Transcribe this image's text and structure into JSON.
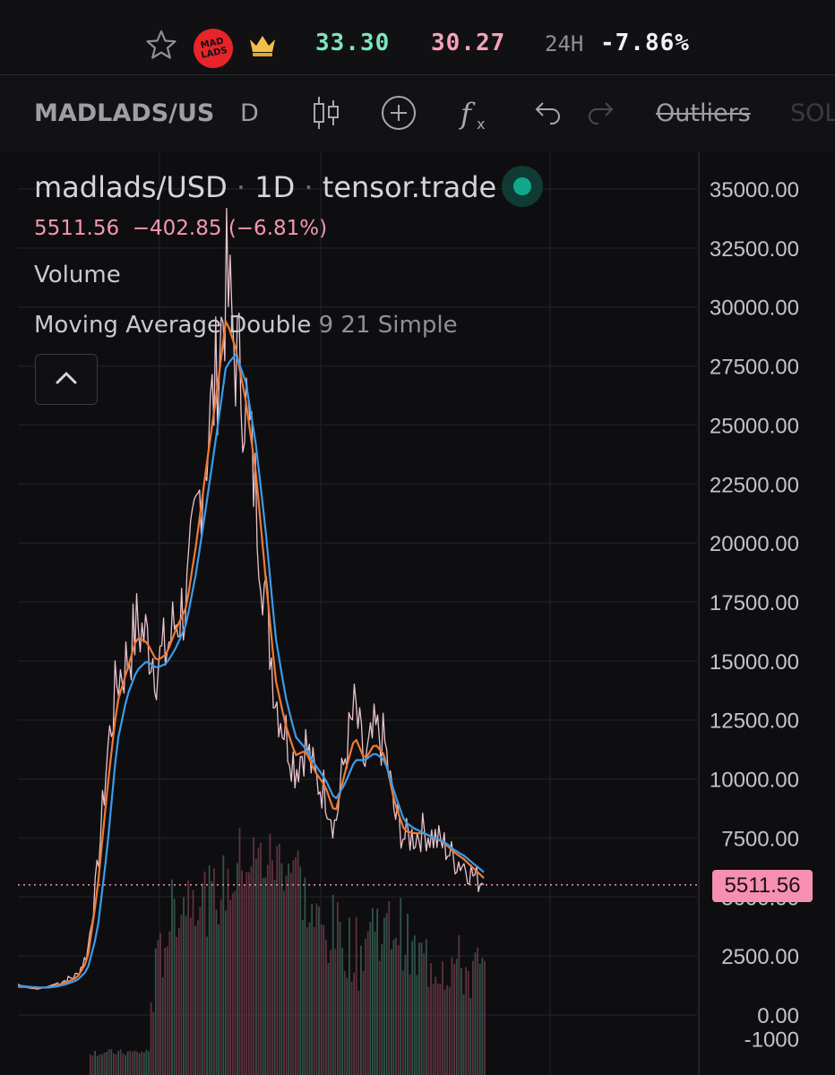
{
  "header": {
    "high_price": "33.30",
    "low_price": "30.27",
    "change_period": "24H",
    "change_pct": "-7.86%",
    "logo_text": "MAD LADS",
    "colors": {
      "high": "#7ce5c0",
      "low": "#f7a1ba",
      "logo": "#e8242b"
    }
  },
  "toolbar": {
    "symbol": "MADLADS/US",
    "interval": "D",
    "outliers": "Outliers",
    "sol": "SOL",
    "icons": [
      "candles-icon",
      "add-icon",
      "indicators-icon",
      "undo-icon",
      "redo-icon"
    ]
  },
  "legend": {
    "pair": "madlads/USD",
    "timeframe": "1D",
    "source": "tensor.trade",
    "separator": "·",
    "last": "5511.56",
    "change": "−402.85",
    "change_pct": "(−6.81%)",
    "volume_label": "Volume",
    "ma_label": "Moving Average Double",
    "ma_params": "9 21 Simple"
  },
  "price_tag": "5511.56",
  "chart_data": {
    "type": "line",
    "title": "madlads/USD · 1D · tensor.trade",
    "ylim": [
      -1000,
      35500
    ],
    "yticks": [
      "35000.00",
      "32500.00",
      "30000.00",
      "27500.00",
      "25000.00",
      "22500.00",
      "20000.00",
      "17500.00",
      "15000.00",
      "12500.00",
      "10000.00",
      "7500.00",
      "5000.00",
      "2500.00",
      "0.00",
      "-1000"
    ],
    "current_price": 5511.56,
    "grid": true,
    "series": [
      {
        "name": "price",
        "color": "#e8c3ce",
        "values": [
          1300,
          1150,
          1100,
          1200,
          1350,
          1500,
          1700,
          2600,
          6000,
          11000,
          14200,
          15000,
          16500,
          16000,
          14800,
          15500,
          16800,
          17500,
          21000,
          24000,
          27000,
          31000,
          28000,
          26000,
          22000,
          17500,
          13500,
          12000,
          10500,
          11500,
          10000,
          9500,
          8000,
          11000,
          13000,
          10500,
          12000,
          11500,
          8500,
          7500,
          7600,
          7800,
          7500,
          7200,
          6600,
          6400,
          5900,
          5511.56
        ]
      },
      {
        "name": "MA 9",
        "color": "#f07a35",
        "values": [
          1200,
          1180,
          1150,
          1170,
          1260,
          1400,
          1600,
          2300,
          5200,
          9500,
          13200,
          14600,
          16000,
          15800,
          15000,
          15300,
          16400,
          17300,
          20000,
          23200,
          26200,
          29500,
          28200,
          26000,
          23000,
          18500,
          14200,
          12300,
          11000,
          11200,
          10300,
          9700,
          8500,
          10300,
          11800,
          10800,
          11500,
          11000,
          9000,
          7800,
          7700,
          7700,
          7500,
          7300,
          6900,
          6600,
          6200,
          5800
        ]
      },
      {
        "name": "MA 21",
        "color": "#3c9be8",
        "values": [
          1250,
          1200,
          1170,
          1160,
          1210,
          1320,
          1480,
          1900,
          3500,
          7000,
          11500,
          13500,
          14600,
          15000,
          14700,
          14900,
          15600,
          16600,
          18800,
          21600,
          24500,
          27500,
          28000,
          26800,
          24200,
          20500,
          16000,
          13500,
          11800,
          11300,
          10600,
          10000,
          9100,
          9800,
          10800,
          10800,
          11100,
          10800,
          9400,
          8200,
          7900,
          7700,
          7500,
          7350,
          7000,
          6750,
          6400,
          6050
        ]
      }
    ]
  }
}
